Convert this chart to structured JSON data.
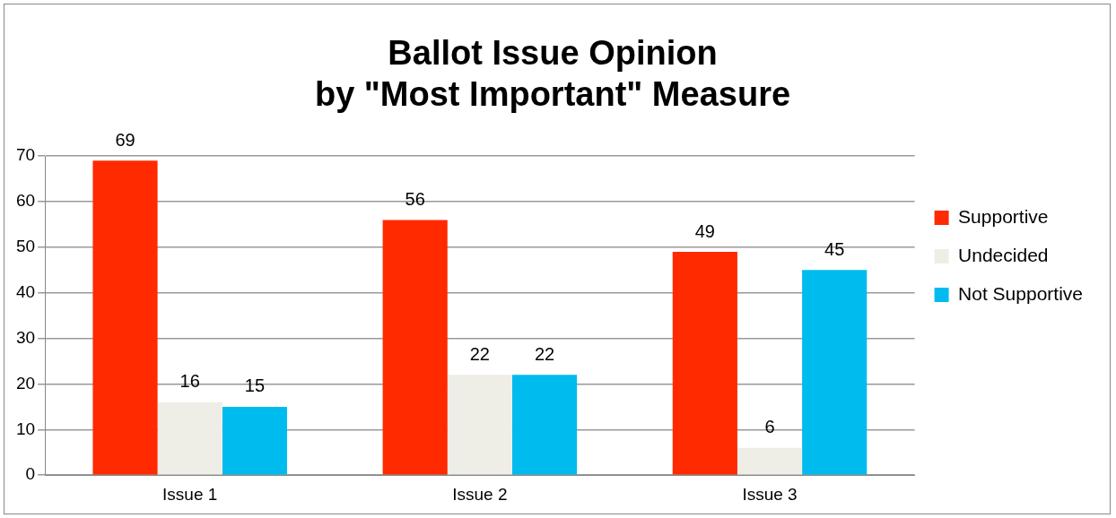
{
  "chart_data": {
    "type": "bar",
    "title": "Ballot Issue Opinion\nby \"Most Important\" Measure",
    "categories": [
      "Issue 1",
      "Issue 2",
      "Issue 3"
    ],
    "series": [
      {
        "name": "Supportive",
        "color": "#ff2a00",
        "values": [
          69,
          56,
          49
        ]
      },
      {
        "name": "Undecided",
        "color": "#eeeee6",
        "values": [
          16,
          22,
          6
        ]
      },
      {
        "name": "Not Supportive",
        "color": "#00bbee",
        "values": [
          15,
          22,
          45
        ]
      }
    ],
    "ylim": [
      0,
      70
    ],
    "yticks": [
      0,
      10,
      20,
      30,
      40,
      50,
      60,
      70
    ],
    "grid": "y",
    "legend": "right",
    "data_labels": true
  }
}
